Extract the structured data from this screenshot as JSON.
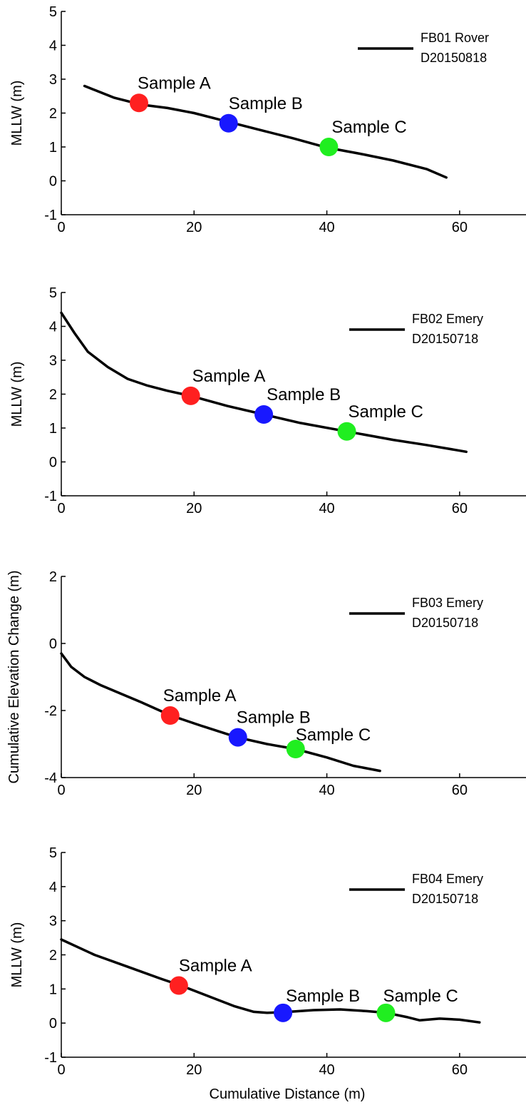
{
  "chart_data": [
    {
      "type": "line",
      "ylabel": "MLLW (m)",
      "xlabel": "",
      "xlim": [
        0,
        70
      ],
      "ylim": [
        -1,
        5
      ],
      "xticks": [
        0,
        20,
        40,
        60
      ],
      "yticks": [
        -1,
        0,
        1,
        2,
        3,
        4,
        5
      ],
      "legend": {
        "lines": [
          "FB01 Rover",
          "D20150818"
        ],
        "placement": "top-right"
      },
      "series": [
        {
          "x": [
            3.5,
            8,
            12,
            16,
            20,
            25,
            30,
            35,
            40,
            45,
            50,
            55,
            58
          ],
          "y": [
            2.8,
            2.45,
            2.25,
            2.15,
            2.0,
            1.75,
            1.5,
            1.25,
            0.98,
            0.8,
            0.6,
            0.35,
            0.1
          ]
        }
      ],
      "samples": [
        {
          "label": "Sample A",
          "x": 11.7,
          "y": 2.3,
          "color": "#ff2020"
        },
        {
          "label": "Sample B",
          "x": 25.2,
          "y": 1.7,
          "color": "#1818ff"
        },
        {
          "label": "Sample C",
          "x": 40.3,
          "y": 1.0,
          "color": "#20ee20"
        }
      ]
    },
    {
      "type": "line",
      "ylabel": "MLLW (m)",
      "xlabel": "",
      "xlim": [
        0,
        70
      ],
      "ylim": [
        -1,
        5
      ],
      "xticks": [
        0,
        20,
        40,
        60
      ],
      "yticks": [
        -1,
        0,
        1,
        2,
        3,
        4,
        5
      ],
      "legend": {
        "lines": [
          "FB02 Emery",
          "D20150718"
        ],
        "placement": "top-right"
      },
      "series": [
        {
          "x": [
            0,
            2,
            4,
            7,
            10,
            13,
            16,
            19.5,
            25,
            30.5,
            36,
            43,
            50,
            55,
            61
          ],
          "y": [
            4.4,
            3.8,
            3.25,
            2.8,
            2.45,
            2.25,
            2.1,
            1.95,
            1.65,
            1.4,
            1.15,
            0.9,
            0.65,
            0.5,
            0.3
          ]
        }
      ],
      "samples": [
        {
          "label": "Sample A",
          "x": 19.5,
          "y": 1.95,
          "color": "#ff2020"
        },
        {
          "label": "Sample B",
          "x": 30.5,
          "y": 1.4,
          "color": "#1818ff"
        },
        {
          "label": "Sample C",
          "x": 43.0,
          "y": 0.9,
          "color": "#20ee20"
        }
      ]
    },
    {
      "type": "line",
      "ylabel": "Cumulative Elevation Change (m)",
      "xlabel": "",
      "xlim": [
        0,
        70
      ],
      "ylim": [
        -4,
        2
      ],
      "xticks": [
        0,
        20,
        40,
        60
      ],
      "yticks": [
        -4,
        -2,
        0,
        2
      ],
      "legend": {
        "lines": [
          "FB03 Emery",
          "D20150718"
        ],
        "placement": "top-right"
      },
      "series": [
        {
          "x": [
            0,
            1.5,
            3.5,
            6,
            9,
            12,
            16.5,
            21,
            26.5,
            31,
            35.3,
            40,
            44,
            48
          ],
          "y": [
            -0.3,
            -0.7,
            -1.0,
            -1.25,
            -1.5,
            -1.75,
            -2.15,
            -2.45,
            -2.8,
            -3.0,
            -3.15,
            -3.4,
            -3.65,
            -3.8
          ]
        }
      ],
      "samples": [
        {
          "label": "Sample A",
          "x": 16.4,
          "y": -2.15,
          "color": "#ff2020"
        },
        {
          "label": "Sample B",
          "x": 26.6,
          "y": -2.8,
          "color": "#1818ff"
        },
        {
          "label": "Sample C",
          "x": 35.3,
          "y": -3.15,
          "color": "#20ee20"
        }
      ]
    },
    {
      "type": "line",
      "ylabel": "MLLW (m)",
      "xlabel": "Cumulative Distance (m)",
      "xlim": [
        0,
        70
      ],
      "ylim": [
        -1,
        5
      ],
      "xticks": [
        0,
        20,
        40,
        60
      ],
      "yticks": [
        -1,
        0,
        1,
        2,
        3,
        4,
        5
      ],
      "legend": {
        "lines": [
          "FB04 Emery",
          "D20150718"
        ],
        "placement": "top-right"
      },
      "series": [
        {
          "x": [
            0,
            5,
            10,
            15,
            18,
            22,
            26,
            29,
            31,
            33.5,
            38,
            42,
            46,
            49,
            52,
            54,
            57,
            60,
            63
          ],
          "y": [
            2.45,
            2.0,
            1.65,
            1.3,
            1.1,
            0.8,
            0.5,
            0.33,
            0.3,
            0.32,
            0.38,
            0.4,
            0.35,
            0.3,
            0.18,
            0.08,
            0.13,
            0.1,
            0.02
          ]
        }
      ],
      "samples": [
        {
          "label": "Sample A",
          "x": 17.7,
          "y": 1.1,
          "color": "#ff2020"
        },
        {
          "label": "Sample B",
          "x": 33.4,
          "y": 0.3,
          "color": "#1818ff"
        },
        {
          "label": "Sample C",
          "x": 48.9,
          "y": 0.3,
          "color": "#20ee20"
        }
      ]
    }
  ]
}
